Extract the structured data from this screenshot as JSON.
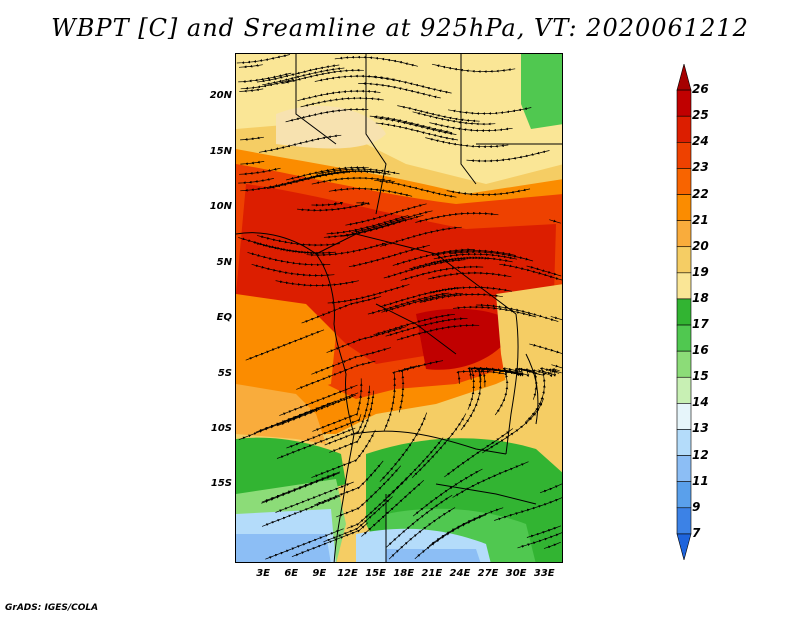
{
  "title": "WBPT [C] and Sreamline at 925hPa, VT: 2020061212",
  "footer": "GrADS: IGES/COLA",
  "map": {
    "lon_range": [
      0,
      35
    ],
    "lat_range": [
      -22,
      24
    ],
    "lat_labels": [
      {
        "text": "20N",
        "lat": 20
      },
      {
        "text": "15N",
        "lat": 15
      },
      {
        "text": "10N",
        "lat": 10
      },
      {
        "text": "5N",
        "lat": 5
      },
      {
        "text": "EQ",
        "lat": 0
      },
      {
        "text": "5S",
        "lat": -5
      },
      {
        "text": "10S",
        "lat": -10
      },
      {
        "text": "15S",
        "lat": -15
      }
    ],
    "lon_labels": [
      {
        "text": "3E",
        "lon": 3
      },
      {
        "text": "6E",
        "lon": 6
      },
      {
        "text": "9E",
        "lon": 9
      },
      {
        "text": "12E",
        "lon": 12
      },
      {
        "text": "15E",
        "lon": 15
      },
      {
        "text": "18E",
        "lon": 18
      },
      {
        "text": "21E",
        "lon": 21
      },
      {
        "text": "24E",
        "lon": 24
      },
      {
        "text": "27E",
        "lon": 27
      },
      {
        "text": "30E",
        "lon": 30
      },
      {
        "text": "33E",
        "lon": 33
      }
    ]
  },
  "colorbar": {
    "labels": [
      "26",
      "25",
      "24",
      "23",
      "22",
      "21",
      "20",
      "19",
      "18",
      "17",
      "16",
      "15",
      "14",
      "13",
      "12",
      "11",
      "9",
      "7"
    ],
    "colors": [
      "#a50000",
      "#c00000",
      "#dc1e00",
      "#ee4100",
      "#f86400",
      "#fb8c00",
      "#f9ac3c",
      "#f5cd64",
      "#fae696",
      "#32b432",
      "#50c850",
      "#8cdc78",
      "#c8f0b4",
      "#e6f5fa",
      "#b4dcfa",
      "#8cbef5",
      "#5aa0eb",
      "#3c82e6",
      "#1e64dc"
    ]
  }
}
